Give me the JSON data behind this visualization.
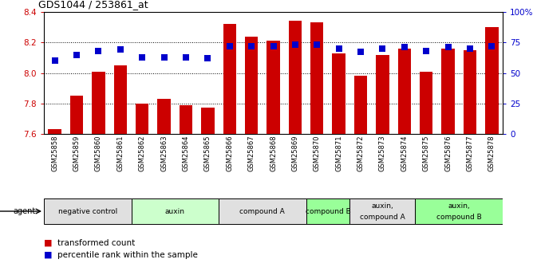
{
  "title": "GDS1044 / 253861_at",
  "samples": [
    "GSM25858",
    "GSM25859",
    "GSM25860",
    "GSM25861",
    "GSM25862",
    "GSM25863",
    "GSM25864",
    "GSM25865",
    "GSM25866",
    "GSM25867",
    "GSM25868",
    "GSM25869",
    "GSM25870",
    "GSM25871",
    "GSM25872",
    "GSM25873",
    "GSM25874",
    "GSM25875",
    "GSM25876",
    "GSM25877",
    "GSM25878"
  ],
  "bar_values": [
    7.63,
    7.85,
    8.01,
    8.05,
    7.8,
    7.83,
    7.79,
    7.77,
    8.32,
    8.24,
    8.21,
    8.34,
    8.33,
    8.13,
    7.98,
    8.12,
    8.16,
    8.01,
    8.16,
    8.15,
    8.3
  ],
  "percentile_values": [
    60,
    65,
    68,
    69,
    63,
    63,
    63,
    62,
    72,
    72,
    72,
    73,
    73,
    70,
    67,
    70,
    71,
    68,
    71,
    70,
    72
  ],
  "ymin": 7.6,
  "ymax": 8.4,
  "yticks_left": [
    7.6,
    7.8,
    8.0,
    8.2,
    8.4
  ],
  "yticks_right": [
    0,
    25,
    50,
    75,
    100
  ],
  "right_tick_labels": [
    "0",
    "25",
    "50",
    "75",
    "100%"
  ],
  "bar_color": "#cc0000",
  "dot_color": "#0000cc",
  "bar_base": 7.6,
  "bar_width": 0.6,
  "dot_size": 30,
  "groups": [
    {
      "label": "negative control",
      "start": 0,
      "end": 4,
      "color": "#e0e0e0"
    },
    {
      "label": "auxin",
      "start": 4,
      "end": 8,
      "color": "#ccffcc"
    },
    {
      "label": "compound A",
      "start": 8,
      "end": 12,
      "color": "#e0e0e0"
    },
    {
      "label": "compound B",
      "start": 12,
      "end": 14,
      "color": "#99ff99"
    },
    {
      "label": "auxin,\ncompound A",
      "start": 14,
      "end": 17,
      "color": "#e0e0e0"
    },
    {
      "label": "auxin,\ncompound B",
      "start": 17,
      "end": 21,
      "color": "#99ff99"
    }
  ],
  "agent_label": "agent",
  "legend_red": "transformed count",
  "legend_blue": "percentile rank within the sample"
}
